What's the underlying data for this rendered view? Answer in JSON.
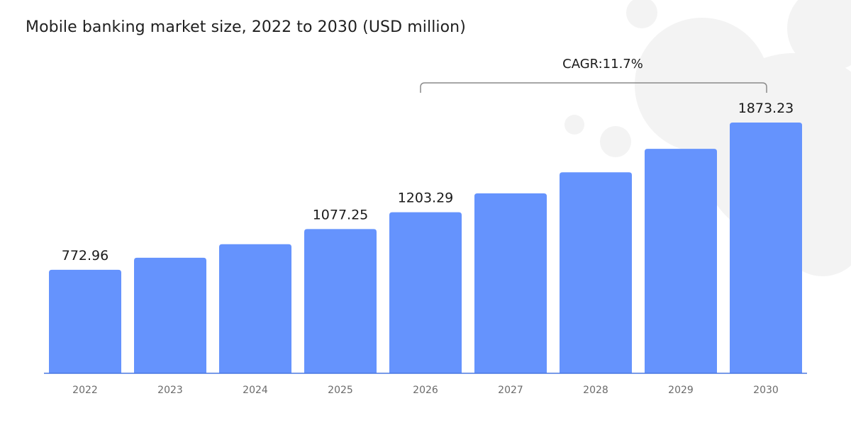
{
  "colors": {
    "bar": "#6593fd",
    "axis": "#4a78e0",
    "bracket": "#8a8a8a",
    "watermark": "#f3f3f3"
  },
  "chart_data": {
    "type": "bar",
    "title": "Mobile banking market size, 2022 to 2030 (USD million)",
    "categories": [
      "2022",
      "2023",
      "2024",
      "2025",
      "2026",
      "2027",
      "2028",
      "2029",
      "2030"
    ],
    "values": [
      772.96,
      863.4,
      964.4,
      1077.25,
      1203.29,
      1344.1,
      1501.4,
      1677.0,
      1873.23
    ],
    "data_labels": [
      "772.96",
      "",
      "",
      "1077.25",
      "1203.29",
      "",
      "",
      "",
      "1873.23"
    ],
    "annotation": {
      "text": "CAGR:11.7%",
      "from": "2026",
      "to": "2030"
    },
    "ylim": [
      0,
      2000
    ],
    "grid": false,
    "legend": "none"
  }
}
